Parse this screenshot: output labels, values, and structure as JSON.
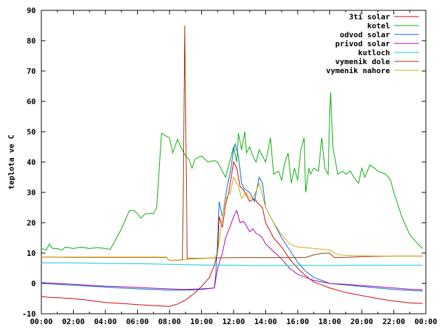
{
  "chart_data": {
    "type": "line",
    "title": "",
    "xlabel": "",
    "ylabel": "teplota ve C",
    "ylim": [
      -10,
      90
    ],
    "xlim": [
      0,
      24
    ],
    "x_tick_labels": [
      "00:00",
      "02:00",
      "04:00",
      "06:00",
      "08:00",
      "10:00",
      "12:00",
      "14:00",
      "16:00",
      "18:00",
      "20:00",
      "22:00",
      "00:00"
    ],
    "y_ticks": [
      -10,
      0,
      10,
      20,
      30,
      40,
      50,
      60,
      70,
      80,
      90
    ],
    "grid": false,
    "legend_position": "top-right",
    "x_unit": "hours",
    "series": [
      {
        "name": "3ti solar",
        "color": "#cc0000",
        "points": [
          [
            0,
            -4.3
          ],
          [
            0.5,
            -4.6
          ],
          [
            1,
            -4.7
          ],
          [
            2,
            -5
          ],
          [
            3,
            -5.6
          ],
          [
            4,
            -6.3
          ],
          [
            5,
            -6.6
          ],
          [
            6,
            -7
          ],
          [
            7,
            -7.3
          ],
          [
            8,
            -7.6
          ],
          [
            8.5,
            -6.8
          ],
          [
            9,
            -5.5
          ],
          [
            9.5,
            -3.5
          ],
          [
            10,
            -1
          ],
          [
            10.5,
            2
          ],
          [
            10.8,
            6
          ],
          [
            11,
            10
          ],
          [
            11.1,
            22
          ],
          [
            11.3,
            18.5
          ],
          [
            11.5,
            26
          ],
          [
            11.7,
            30
          ],
          [
            12,
            40
          ],
          [
            12.2,
            38
          ],
          [
            12.4,
            32
          ],
          [
            12.6,
            31
          ],
          [
            12.8,
            29
          ],
          [
            13,
            27
          ],
          [
            13.3,
            28
          ],
          [
            13.5,
            26.5
          ],
          [
            13.8,
            25
          ],
          [
            14,
            20
          ],
          [
            14.5,
            15
          ],
          [
            15,
            12
          ],
          [
            15.5,
            8
          ],
          [
            16,
            5
          ],
          [
            16.5,
            2.5
          ],
          [
            17,
            0.5
          ],
          [
            17.5,
            -0.5
          ],
          [
            18,
            -1.5
          ],
          [
            19,
            -3
          ],
          [
            20,
            -4
          ],
          [
            21,
            -5
          ],
          [
            22,
            -5.8
          ],
          [
            23,
            -6.4
          ],
          [
            23.8,
            -6.6
          ]
        ]
      },
      {
        "name": "kotel",
        "color": "#00aa00",
        "points": [
          [
            0,
            11.5
          ],
          [
            0.3,
            11
          ],
          [
            0.5,
            13
          ],
          [
            0.7,
            11.5
          ],
          [
            1,
            11.5
          ],
          [
            1.3,
            11
          ],
          [
            1.5,
            12
          ],
          [
            2,
            11.5
          ],
          [
            2.5,
            12
          ],
          [
            3,
            11.5
          ],
          [
            3.5,
            11.8
          ],
          [
            4,
            11.5
          ],
          [
            4.3,
            11.2
          ],
          [
            5,
            18
          ],
          [
            5.5,
            24
          ],
          [
            5.8,
            24
          ],
          [
            6,
            23
          ],
          [
            6.2,
            21.5
          ],
          [
            6.5,
            23
          ],
          [
            7,
            23
          ],
          [
            7.2,
            25
          ],
          [
            7.5,
            49.5
          ],
          [
            7.8,
            48.5
          ],
          [
            8,
            48
          ],
          [
            8.2,
            43
          ],
          [
            8.5,
            47.5
          ],
          [
            8.7,
            45
          ],
          [
            9,
            42
          ],
          [
            9.2,
            41
          ],
          [
            9.4,
            38
          ],
          [
            9.6,
            41
          ],
          [
            10,
            42
          ],
          [
            10.4,
            40
          ],
          [
            10.8,
            40.5
          ],
          [
            11,
            40
          ],
          [
            11.3,
            37
          ],
          [
            11.5,
            35
          ],
          [
            11.8,
            41
          ],
          [
            12,
            45
          ],
          [
            12.2,
            40
          ],
          [
            12.3,
            49.5
          ],
          [
            12.5,
            44
          ],
          [
            12.7,
            50
          ],
          [
            12.8,
            43
          ],
          [
            13,
            45
          ],
          [
            13.2,
            42
          ],
          [
            13.4,
            40
          ],
          [
            13.6,
            44
          ],
          [
            14,
            40
          ],
          [
            14.3,
            48
          ],
          [
            14.5,
            36
          ],
          [
            14.8,
            37
          ],
          [
            15,
            34
          ],
          [
            15.2,
            40
          ],
          [
            15.4,
            43
          ],
          [
            15.6,
            33
          ],
          [
            15.8,
            38
          ],
          [
            16,
            34
          ],
          [
            16.2,
            44
          ],
          [
            16.4,
            48
          ],
          [
            16.5,
            30
          ],
          [
            16.7,
            38
          ],
          [
            16.8,
            36
          ],
          [
            17,
            38
          ],
          [
            17.3,
            37
          ],
          [
            17.5,
            48
          ],
          [
            17.7,
            38
          ],
          [
            17.9,
            36
          ],
          [
            18,
            56
          ],
          [
            18.05,
            63
          ],
          [
            18.2,
            45
          ],
          [
            18.5,
            36
          ],
          [
            18.8,
            37
          ],
          [
            19,
            36
          ],
          [
            19.3,
            37
          ],
          [
            19.5,
            35
          ],
          [
            19.8,
            33
          ],
          [
            20,
            38
          ],
          [
            20.2,
            35
          ],
          [
            20.5,
            39
          ],
          [
            20.8,
            38
          ],
          [
            21,
            37
          ],
          [
            21.5,
            36
          ],
          [
            21.8,
            34
          ],
          [
            22,
            30
          ],
          [
            22.5,
            22
          ],
          [
            23,
            16
          ],
          [
            23.5,
            13
          ],
          [
            23.8,
            11.5
          ]
        ]
      },
      {
        "name": "odvod solar",
        "color": "#0066cc",
        "points": [
          [
            0,
            0
          ],
          [
            1,
            -0.3
          ],
          [
            2,
            -0.6
          ],
          [
            3,
            -0.9
          ],
          [
            4,
            -1.2
          ],
          [
            5,
            -1.5
          ],
          [
            6,
            -1.8
          ],
          [
            7,
            -2
          ],
          [
            8,
            -2.2
          ],
          [
            9,
            -2.2
          ],
          [
            10,
            -2
          ],
          [
            10.8,
            -1.5
          ],
          [
            10.9,
            4
          ],
          [
            11,
            14
          ],
          [
            11.1,
            27
          ],
          [
            11.3,
            22
          ],
          [
            11.6,
            32
          ],
          [
            11.8,
            37
          ],
          [
            12,
            44
          ],
          [
            12.1,
            46
          ],
          [
            12.3,
            42
          ],
          [
            12.5,
            33
          ],
          [
            12.7,
            31
          ],
          [
            13,
            30
          ],
          [
            13.3,
            27
          ],
          [
            13.6,
            35
          ],
          [
            13.8,
            33
          ],
          [
            14,
            25
          ],
          [
            14.5,
            20
          ],
          [
            15,
            15
          ],
          [
            15.5,
            11
          ],
          [
            16,
            7
          ],
          [
            16.5,
            4
          ],
          [
            17,
            2
          ],
          [
            17.5,
            1
          ],
          [
            18,
            0
          ],
          [
            19,
            -0.5
          ],
          [
            20,
            -1
          ],
          [
            21,
            -1.5
          ],
          [
            22,
            -2
          ],
          [
            23,
            -2.3
          ],
          [
            23.8,
            -2.5
          ]
        ]
      },
      {
        "name": "privod solar",
        "color": "#aa00aa",
        "points": [
          [
            0,
            0.3
          ],
          [
            1,
            0
          ],
          [
            2,
            -0.3
          ],
          [
            3,
            -0.6
          ],
          [
            4,
            -0.9
          ],
          [
            5,
            -1.1
          ],
          [
            6,
            -1.3
          ],
          [
            7,
            -1.6
          ],
          [
            8,
            -1.8
          ],
          [
            9,
            -2
          ],
          [
            10,
            -1.8
          ],
          [
            10.8,
            -1.5
          ],
          [
            11,
            5
          ],
          [
            11.3,
            10
          ],
          [
            11.5,
            15
          ],
          [
            11.8,
            19
          ],
          [
            12,
            22
          ],
          [
            12.2,
            24
          ],
          [
            12.4,
            20
          ],
          [
            12.6,
            20.5
          ],
          [
            12.8,
            19
          ],
          [
            13,
            17
          ],
          [
            13.2,
            18
          ],
          [
            13.4,
            16.5
          ],
          [
            13.6,
            16
          ],
          [
            13.8,
            15
          ],
          [
            14,
            13
          ],
          [
            14.5,
            10.5
          ],
          [
            15,
            8
          ],
          [
            15.5,
            5
          ],
          [
            16,
            3
          ],
          [
            16.5,
            2
          ],
          [
            17,
            1
          ],
          [
            17.5,
            0.5
          ],
          [
            18,
            0
          ],
          [
            19,
            -0.3
          ],
          [
            20,
            -0.7
          ],
          [
            21,
            -1.1
          ],
          [
            22,
            -1.5
          ],
          [
            23,
            -1.9
          ],
          [
            23.8,
            -2.1
          ]
        ]
      },
      {
        "name": "kutloch",
        "color": "#00cccc",
        "points": [
          [
            0,
            6.8
          ],
          [
            2,
            6.8
          ],
          [
            4,
            6.6
          ],
          [
            6,
            6.5
          ],
          [
            8,
            6.3
          ],
          [
            10,
            6.1
          ],
          [
            12,
            6
          ],
          [
            14,
            5.9
          ],
          [
            16,
            5.9
          ],
          [
            18,
            5.9
          ],
          [
            20,
            6
          ],
          [
            22,
            6
          ],
          [
            23.8,
            6
          ]
        ]
      },
      {
        "name": "vymenik dole",
        "color": "#993300",
        "points": [
          [
            0,
            8.7
          ],
          [
            2,
            8.6
          ],
          [
            4,
            8.6
          ],
          [
            6,
            8.6
          ],
          [
            7.8,
            8.6
          ],
          [
            8,
            7.6
          ],
          [
            8.8,
            7.7
          ],
          [
            8.85,
            25
          ],
          [
            8.95,
            85
          ],
          [
            9.05,
            35
          ],
          [
            9.1,
            8.2
          ],
          [
            10,
            8.3
          ],
          [
            11,
            8.4
          ],
          [
            12,
            8.5
          ],
          [
            13,
            8.5
          ],
          [
            14,
            8.5
          ],
          [
            15,
            8.5
          ],
          [
            16,
            8.5
          ],
          [
            16.5,
            8.6
          ],
          [
            17,
            9.4
          ],
          [
            17.5,
            9.9
          ],
          [
            18,
            10
          ],
          [
            18.3,
            8.5
          ],
          [
            19,
            8.6
          ],
          [
            20,
            8.8
          ],
          [
            21,
            8.9
          ],
          [
            22,
            9
          ],
          [
            23.8,
            9
          ]
        ]
      },
      {
        "name": "vymenik nahore",
        "color": "#ccaa00",
        "points": [
          [
            0,
            8.7
          ],
          [
            2,
            8.7
          ],
          [
            4,
            8.7
          ],
          [
            6,
            8.7
          ],
          [
            7.8,
            8.7
          ],
          [
            8,
            7.6
          ],
          [
            8.8,
            7.8
          ],
          [
            9.2,
            8
          ],
          [
            10,
            8.2
          ],
          [
            10.8,
            8.4
          ],
          [
            11,
            10
          ],
          [
            11.3,
            22
          ],
          [
            11.5,
            28
          ],
          [
            11.8,
            30
          ],
          [
            12,
            35
          ],
          [
            12.3,
            32
          ],
          [
            12.5,
            28
          ],
          [
            12.8,
            30
          ],
          [
            13,
            28
          ],
          [
            13.3,
            29
          ],
          [
            13.6,
            33
          ],
          [
            14,
            25
          ],
          [
            14.5,
            20
          ],
          [
            15,
            16
          ],
          [
            15.5,
            13
          ],
          [
            16,
            12
          ],
          [
            16.5,
            11.8
          ],
          [
            17,
            11.5
          ],
          [
            17.5,
            11.3
          ],
          [
            18,
            11
          ],
          [
            18.5,
            9.5
          ],
          [
            19,
            9.2
          ],
          [
            20,
            9.1
          ],
          [
            21,
            9
          ],
          [
            22,
            9
          ],
          [
            23.8,
            9
          ]
        ]
      }
    ]
  }
}
